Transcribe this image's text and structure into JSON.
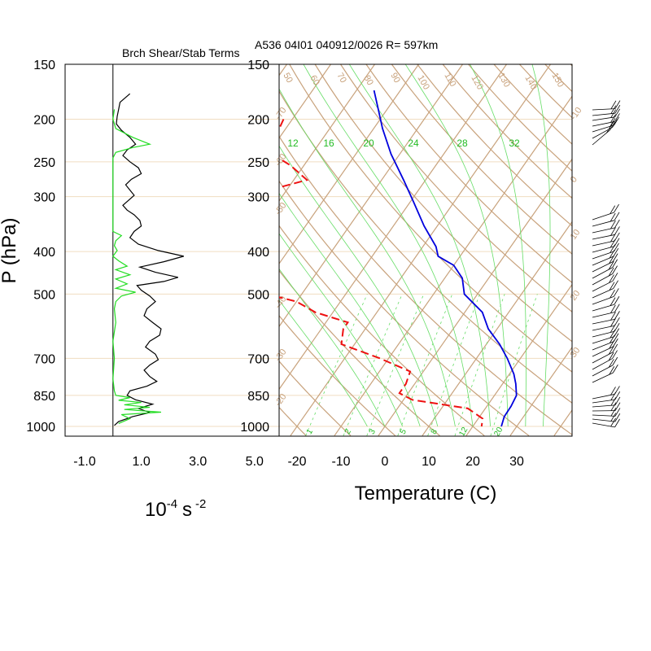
{
  "left_panel": {
    "title": "Brch Shear/Stab Terms",
    "x_ticks": [
      "-1.0",
      "1.0",
      "3.0",
      "5.0"
    ],
    "x_tick_values": [
      -1,
      1,
      3,
      5
    ],
    "units_base": "10",
    "units_exp1": "-4",
    "units_s": "s",
    "units_exp2": "-2",
    "zero_line": 0
  },
  "right_panel": {
    "title": "A536 04I01 040912/0026 R= 597km",
    "x_ticks": [
      "-20",
      "-10",
      "0",
      "10",
      "20",
      "30"
    ],
    "x_tick_values": [
      -20,
      -10,
      0,
      10,
      20,
      30
    ],
    "xlabel": "Temperature (C)"
  },
  "pressure_axis": {
    "ylabel": "P (hPa)",
    "levels": [
      "150",
      "200",
      "250",
      "300",
      "400",
      "500",
      "700",
      "850",
      "1000"
    ],
    "level_values": [
      150,
      200,
      250,
      300,
      400,
      500,
      700,
      850,
      1000
    ]
  },
  "colors": {
    "temperature": "#0000dd",
    "dewpoint": "#ee1111",
    "shear": "#000000",
    "stability": "#22dd22",
    "background_lines": "#c8a27c",
    "moist_lines": "#66dd66"
  },
  "chart_data": [
    {
      "type": "line",
      "name": "shear-stability",
      "title": "Brch Shear/Stab Terms",
      "xlabel": "10-4 s -2",
      "ylabel": "P (hPa)",
      "xlim": [
        -1,
        5
      ],
      "y_scale": "log",
      "ylim": [
        1000,
        150
      ],
      "series": [
        {
          "name": "",
          "color": "#000000",
          "points": [
            [
              0.6,
              175
            ],
            [
              0.25,
              183
            ],
            [
              0.2,
              190
            ],
            [
              0.15,
              197
            ],
            [
              0.12,
              205
            ],
            [
              0.3,
              212
            ],
            [
              0.6,
              220
            ],
            [
              0.8,
              228
            ],
            [
              0.5,
              235
            ],
            [
              0.35,
              242
            ],
            [
              0.6,
              250
            ],
            [
              0.9,
              258
            ],
            [
              1.0,
              266
            ],
            [
              0.65,
              274
            ],
            [
              0.45,
              282
            ],
            [
              0.6,
              290
            ],
            [
              0.75,
              298
            ],
            [
              0.55,
              306
            ],
            [
              0.35,
              314
            ],
            [
              0.5,
              322
            ],
            [
              0.75,
              330
            ],
            [
              0.95,
              340
            ],
            [
              1.0,
              350
            ],
            [
              0.75,
              360
            ],
            [
              0.6,
              372
            ],
            [
              0.9,
              385
            ],
            [
              1.6,
              398
            ],
            [
              2.5,
              410
            ],
            [
              1.8,
              422
            ],
            [
              0.95,
              434
            ],
            [
              1.5,
              446
            ],
            [
              2.3,
              458
            ],
            [
              1.8,
              468
            ],
            [
              0.85,
              478
            ],
            [
              1.0,
              490
            ],
            [
              1.3,
              505
            ],
            [
              1.5,
              520
            ],
            [
              1.2,
              540
            ],
            [
              1.1,
              560
            ],
            [
              1.4,
              580
            ],
            [
              1.7,
              600
            ],
            [
              1.65,
              620
            ],
            [
              1.3,
              640
            ],
            [
              1.15,
              660
            ],
            [
              1.5,
              685
            ],
            [
              1.6,
              705
            ],
            [
              1.3,
              725
            ],
            [
              1.1,
              745
            ],
            [
              1.3,
              770
            ],
            [
              1.55,
              790
            ],
            [
              1.2,
              810
            ],
            [
              0.6,
              830
            ],
            [
              0.5,
              850
            ],
            [
              0.8,
              870
            ],
            [
              1.4,
              890
            ],
            [
              0.9,
              910
            ],
            [
              1.3,
              930
            ],
            [
              0.7,
              950
            ],
            [
              0.2,
              975
            ],
            [
              0.05,
              995
            ]
          ]
        },
        {
          "name": "",
          "color": "#22dd22",
          "points": [
            [
              0.05,
              190
            ],
            [
              0.0,
              200
            ],
            [
              0.1,
              210
            ],
            [
              0.7,
              220
            ],
            [
              1.3,
              228
            ],
            [
              0.7,
              232
            ],
            [
              0.1,
              238
            ],
            [
              0.0,
              245
            ],
            [
              0.0,
              360
            ],
            [
              0.3,
              368
            ],
            [
              0.1,
              378
            ],
            [
              0.05,
              388
            ],
            [
              0.15,
              398
            ],
            [
              0.0,
              410
            ],
            [
              0.2,
              420
            ],
            [
              0.5,
              432
            ],
            [
              0.1,
              440
            ],
            [
              0.6,
              452
            ],
            [
              0.1,
              462
            ],
            [
              0.5,
              474
            ],
            [
              0.1,
              485
            ],
            [
              0.8,
              495
            ],
            [
              0.3,
              505
            ],
            [
              0.1,
              520
            ],
            [
              0.05,
              540
            ],
            [
              0.1,
              580
            ],
            [
              0.0,
              640
            ],
            [
              0.05,
              700
            ],
            [
              0.0,
              780
            ],
            [
              0.05,
              830
            ],
            [
              0.1,
              850
            ],
            [
              0.6,
              860
            ],
            [
              0.2,
              872
            ],
            [
              1.0,
              882
            ],
            [
              0.4,
              893
            ],
            [
              1.3,
              905
            ],
            [
              0.4,
              915
            ],
            [
              1.7,
              928
            ],
            [
              0.3,
              940
            ],
            [
              0.6,
              960
            ],
            [
              0.2,
              985
            ]
          ]
        }
      ]
    },
    {
      "type": "line",
      "name": "skew-t",
      "title": "A536 04I01 040912/0026 R= 597km",
      "xlabel": "Temperature (C)",
      "ylabel": "P (hPa)",
      "xlim": [
        -23,
        42
      ],
      "y_scale": "log",
      "ylim": [
        1000,
        150
      ],
      "skewed": true,
      "isotherm_labels": [
        "-70",
        "-60",
        "-50",
        "-40",
        "-30",
        "-20",
        "-10",
        "0",
        "10",
        "20",
        "30"
      ],
      "dry_adiabat_labels": [
        "50",
        "60",
        "70",
        "80",
        "90",
        "100",
        "110",
        "120",
        "130",
        "140",
        "150"
      ],
      "mixing_ratio_labels": [
        "12",
        "16",
        "20",
        "24",
        "28",
        "32"
      ],
      "mixing_ratio_labels_low": [
        "1",
        "2",
        "3",
        "5",
        "8",
        "12",
        "20"
      ],
      "series": [
        {
          "name": "",
          "color": "#0000dd",
          "style": "solid",
          "points": [
            [
              -56,
              172
            ],
            [
              -52,
              190
            ],
            [
              -48,
              210
            ],
            [
              -42,
              240
            ],
            [
              -35,
              275
            ],
            [
              -29,
              310
            ],
            [
              -23,
              350
            ],
            [
              -17,
              390
            ],
            [
              -15,
              410
            ],
            [
              -10,
              430
            ],
            [
              -6,
              460
            ],
            [
              -3,
              500
            ],
            [
              4,
              550
            ],
            [
              8,
              600
            ],
            [
              13,
              650
            ],
            [
              17,
              700
            ],
            [
              21,
              760
            ],
            [
              23,
              800
            ],
            [
              25,
              850
            ],
            [
              25.5,
              900
            ],
            [
              25.6,
              950
            ],
            [
              26.5,
              1000
            ]
          ]
        },
        {
          "name": "",
          "color": "#ee1111",
          "style": "dashed",
          "points": [
            [
              -72,
              200
            ],
            [
              -71,
              220
            ],
            [
              -69,
              240
            ],
            [
              -63,
              255
            ],
            [
              -57,
              275
            ],
            [
              -64,
              290
            ],
            [
              -64,
              310
            ],
            [
              -65,
              335
            ],
            [
              -58,
              360
            ],
            [
              -83,
              380
            ],
            [
              -60,
              392
            ],
            [
              -90,
              415
            ],
            [
              -55,
              430
            ],
            [
              -68,
              442
            ],
            [
              -62,
              450
            ],
            [
              -56,
              470
            ],
            [
              -48,
              500
            ],
            [
              -40,
              520
            ],
            [
              -34,
              550
            ],
            [
              -25,
              580
            ],
            [
              -25,
              600
            ],
            [
              -23,
              650
            ],
            [
              -12,
              700
            ],
            [
              -3,
              750
            ],
            [
              -2,
              800
            ],
            [
              -2,
              840
            ],
            [
              2,
              870
            ],
            [
              16,
              910
            ],
            [
              21,
              960
            ],
            [
              22,
              1000
            ]
          ]
        }
      ]
    }
  ]
}
